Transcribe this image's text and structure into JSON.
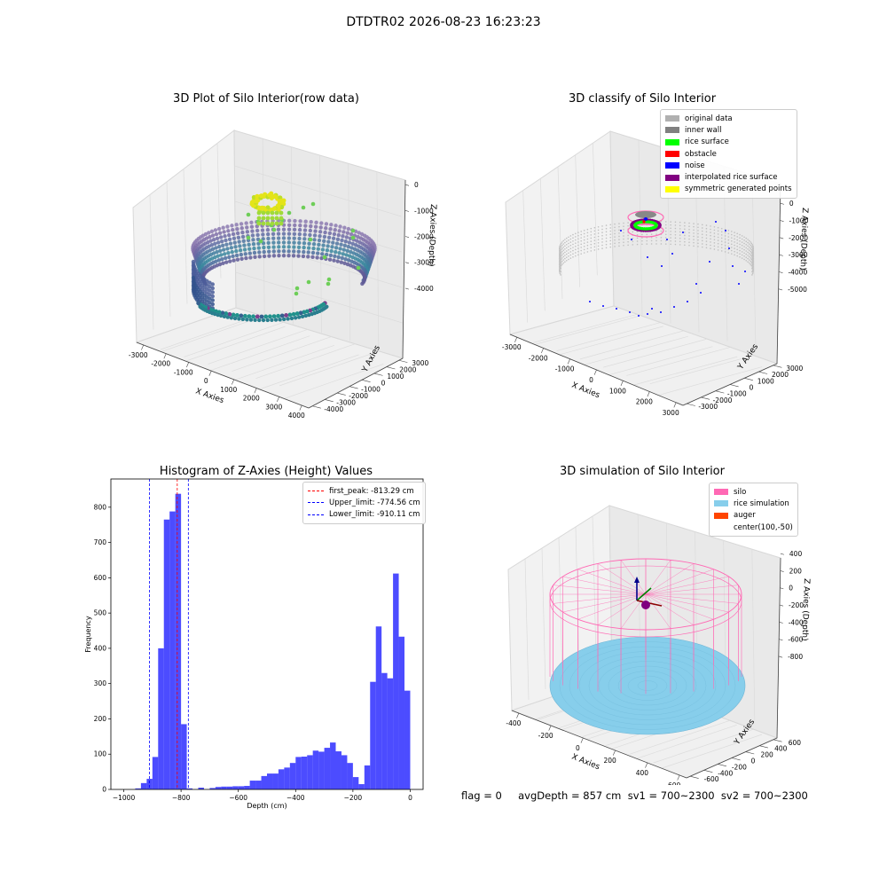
{
  "suptitle": "DTDTR02 2026-08-23 16:23:23",
  "panels": {
    "raw": {
      "title": "3D Plot of Silo Interior(row data)",
      "xlabel": "X Axies",
      "ylabel": "Y Axies",
      "zlabel": "Z Axies (Depth)",
      "xticks": [
        "-3000",
        "-2000",
        "-1000",
        "0",
        "1000",
        "2000",
        "3000",
        "4000"
      ],
      "yticks": [
        "-4000",
        "-3000",
        "-2000",
        "-1000",
        "0",
        "1000",
        "2000",
        "3000"
      ],
      "zticks": [
        "0",
        "-1000",
        "-2000",
        "-3000",
        "-4000"
      ]
    },
    "classify": {
      "title": "3D classify of Silo Interior",
      "xlabel": "X Axies",
      "ylabel": "Y Axies",
      "zlabel": "Z Axies (Depth)",
      "xticks": [
        "-3000",
        "-2000",
        "-1000",
        "0",
        "1000",
        "2000",
        "3000"
      ],
      "yticks": [
        "-3000",
        "-2000",
        "-1000",
        "0",
        "1000",
        "2000",
        "3000"
      ],
      "zticks": [
        "0",
        "-1000",
        "-2000",
        "-3000",
        "-4000",
        "-5000"
      ],
      "legend": [
        {
          "label": "original data",
          "color": "#b0b0b0"
        },
        {
          "label": "inner wall",
          "color": "#808080"
        },
        {
          "label": "rice surface",
          "color": "#00ff00"
        },
        {
          "label": "obstacle",
          "color": "#ff0000"
        },
        {
          "label": "noise",
          "color": "#0000ff"
        },
        {
          "label": "interpolated rice surface",
          "color": "#800080"
        },
        {
          "label": "symmetric generated points",
          "color": "#ffff00"
        }
      ]
    },
    "simulation": {
      "title": "3D simulation of Silo Interior",
      "xlabel": "X Axies",
      "ylabel": "Y Axies",
      "zlabel": "Z Axies (Depth)",
      "xticks": [
        "-400",
        "-200",
        "0",
        "200",
        "400",
        "600"
      ],
      "yticks": [
        "-600",
        "-400",
        "-200",
        "0",
        "200",
        "400",
        "600"
      ],
      "zticks": [
        "400",
        "200",
        "0",
        "-200",
        "-400",
        "-600",
        "-800"
      ],
      "legend": [
        {
          "label": "silo",
          "color": "#ff69b4"
        },
        {
          "label": "rice simulation",
          "color": "#87ceeb"
        },
        {
          "label": "auger",
          "color": "#ff4500"
        },
        {
          "label": "center(100,-50)",
          "color": ""
        }
      ]
    }
  },
  "chart_data": {
    "type": "bar",
    "title": "Histogram of Z-Axies (Height) Values",
    "xlabel": "Depth (cm)",
    "ylabel": "Frequency",
    "xlim": [
      -1045,
      45
    ],
    "ylim": [
      0,
      880
    ],
    "xticks": [
      -1000,
      -800,
      -600,
      -400,
      -200,
      0
    ],
    "yticks": [
      0,
      100,
      200,
      300,
      400,
      500,
      600,
      700,
      800
    ],
    "bar_color": "#0000ff",
    "bars": [
      {
        "x0": -960,
        "x1": -940,
        "count": 3
      },
      {
        "x0": -940,
        "x1": -920,
        "count": 18
      },
      {
        "x0": -920,
        "x1": -900,
        "count": 30
      },
      {
        "x0": -900,
        "x1": -880,
        "count": 92
      },
      {
        "x0": -880,
        "x1": -860,
        "count": 400
      },
      {
        "x0": -860,
        "x1": -840,
        "count": 765
      },
      {
        "x0": -840,
        "x1": -820,
        "count": 788
      },
      {
        "x0": -820,
        "x1": -800,
        "count": 838
      },
      {
        "x0": -800,
        "x1": -780,
        "count": 185
      },
      {
        "x0": -780,
        "x1": -760,
        "count": 3
      },
      {
        "x0": -740,
        "x1": -720,
        "count": 5
      },
      {
        "x0": -700,
        "x1": -680,
        "count": 4
      },
      {
        "x0": -680,
        "x1": -660,
        "count": 7
      },
      {
        "x0": -660,
        "x1": -640,
        "count": 8
      },
      {
        "x0": -640,
        "x1": -620,
        "count": 8
      },
      {
        "x0": -620,
        "x1": -600,
        "count": 9
      },
      {
        "x0": -600,
        "x1": -580,
        "count": 9
      },
      {
        "x0": -580,
        "x1": -560,
        "count": 10
      },
      {
        "x0": -560,
        "x1": -540,
        "count": 25
      },
      {
        "x0": -540,
        "x1": -520,
        "count": 25
      },
      {
        "x0": -520,
        "x1": -500,
        "count": 38
      },
      {
        "x0": -500,
        "x1": -480,
        "count": 45
      },
      {
        "x0": -480,
        "x1": -460,
        "count": 45
      },
      {
        "x0": -460,
        "x1": -440,
        "count": 57
      },
      {
        "x0": -440,
        "x1": -420,
        "count": 62
      },
      {
        "x0": -420,
        "x1": -400,
        "count": 75
      },
      {
        "x0": -400,
        "x1": -380,
        "count": 92
      },
      {
        "x0": -380,
        "x1": -360,
        "count": 93
      },
      {
        "x0": -360,
        "x1": -340,
        "count": 97
      },
      {
        "x0": -340,
        "x1": -320,
        "count": 110
      },
      {
        "x0": -320,
        "x1": -300,
        "count": 107
      },
      {
        "x0": -300,
        "x1": -280,
        "count": 118
      },
      {
        "x0": -280,
        "x1": -260,
        "count": 133
      },
      {
        "x0": -260,
        "x1": -240,
        "count": 108
      },
      {
        "x0": -240,
        "x1": -220,
        "count": 97
      },
      {
        "x0": -220,
        "x1": -200,
        "count": 75
      },
      {
        "x0": -200,
        "x1": -180,
        "count": 35
      },
      {
        "x0": -180,
        "x1": -160,
        "count": 15
      },
      {
        "x0": -160,
        "x1": -140,
        "count": 68
      },
      {
        "x0": -140,
        "x1": -120,
        "count": 305
      },
      {
        "x0": -120,
        "x1": -100,
        "count": 462
      },
      {
        "x0": -100,
        "x1": -80,
        "count": 330
      },
      {
        "x0": -80,
        "x1": -60,
        "count": 315
      },
      {
        "x0": -60,
        "x1": -40,
        "count": 612
      },
      {
        "x0": -40,
        "x1": -20,
        "count": 433
      },
      {
        "x0": -20,
        "x1": 0,
        "count": 280
      }
    ],
    "vlines": [
      {
        "label": "first_peak: -813.29 cm",
        "x": -813.29,
        "color": "#ff0000"
      },
      {
        "label": "Upper_limit: -774.56 cm",
        "x": -774.56,
        "color": "#0000ff"
      },
      {
        "label": "Lower_limit: -910.11 cm",
        "x": -910.11,
        "color": "#0000ff"
      }
    ]
  },
  "footer": {
    "text": "flag = 0     avgDepth = 857 cm  sv1 = 700~2300  sv2 = 700~2300"
  }
}
